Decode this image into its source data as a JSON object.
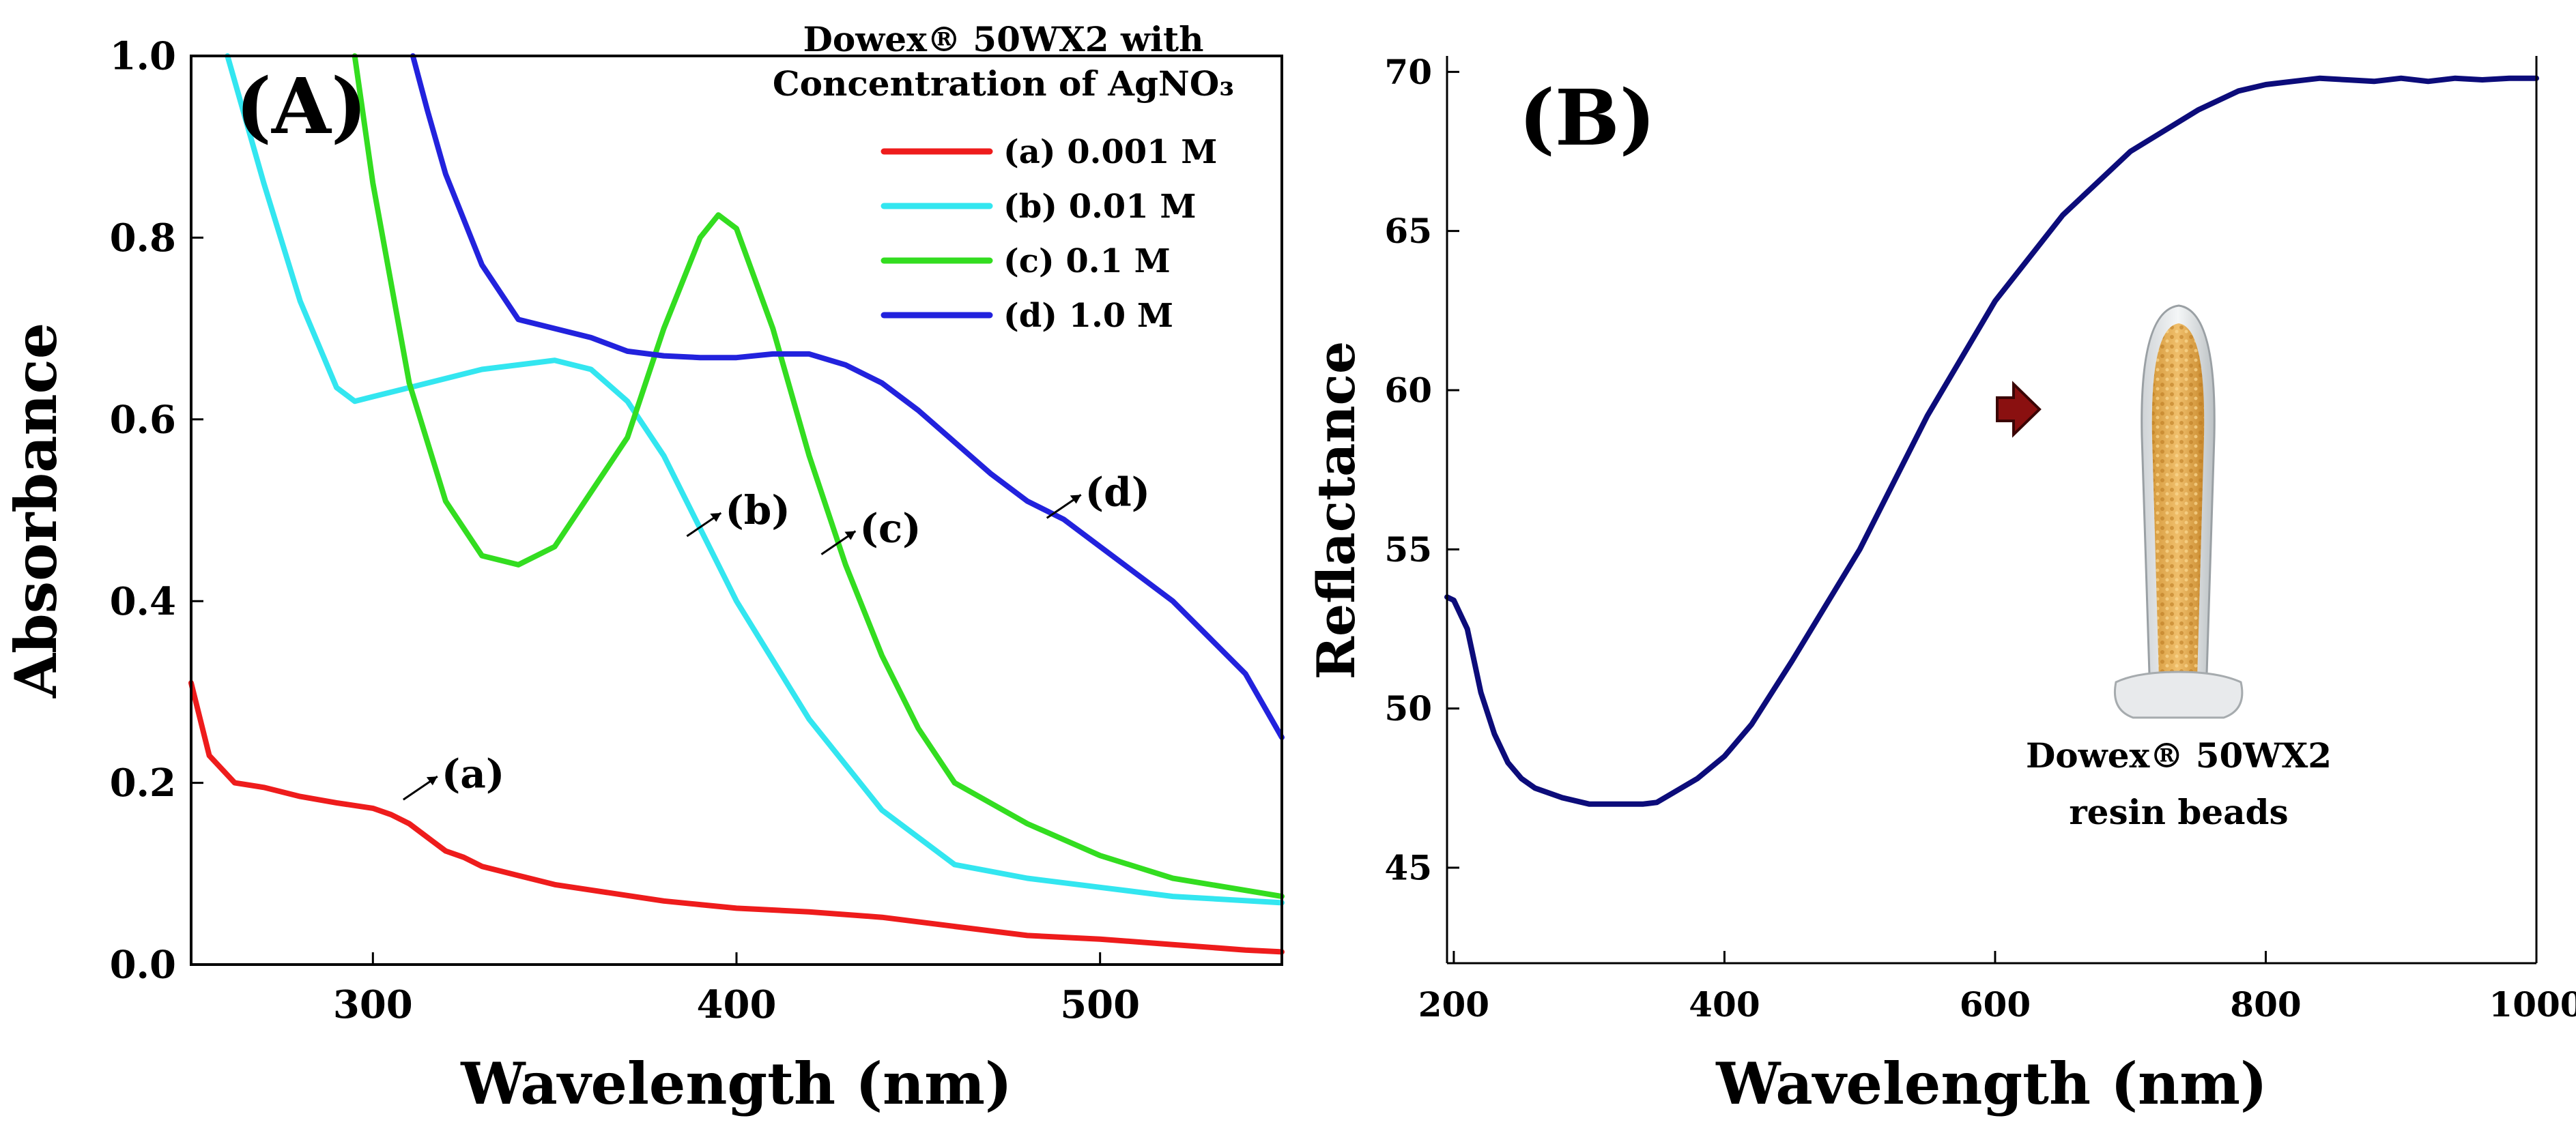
{
  "chart_data": [
    {
      "type": "line",
      "panel_label": "(A)",
      "xlabel": "Wavelength (nm)",
      "ylabel": "Absorbance",
      "xlim": [
        250,
        550
      ],
      "ylim": [
        0.0,
        1.0
      ],
      "x_ticks": [
        300,
        400,
        500
      ],
      "x_tick_labels": [
        "300",
        "400",
        "500"
      ],
      "y_ticks": [
        0.0,
        0.2,
        0.4,
        0.6,
        0.8,
        1.0
      ],
      "y_tick_labels": [
        "0.0",
        "0.2",
        "0.4",
        "0.6",
        "0.8",
        "1.0"
      ],
      "legend_title": [
        "Dowex® 50WX2 with",
        "Concentration of AgNO₃"
      ],
      "legend_position": "top-right",
      "series": [
        {
          "name": "(a) 0.001 M",
          "color": "#ee1c1c",
          "x": [
            250,
            255,
            262,
            270,
            280,
            290,
            300,
            305,
            310,
            315,
            320,
            325,
            330,
            340,
            350,
            360,
            370,
            380,
            390,
            400,
            420,
            440,
            460,
            480,
            500,
            520,
            540,
            550
          ],
          "y": [
            0.31,
            0.23,
            0.2,
            0.195,
            0.185,
            0.178,
            0.172,
            0.165,
            0.155,
            0.14,
            0.125,
            0.118,
            0.108,
            0.098,
            0.088,
            0.082,
            0.076,
            0.07,
            0.066,
            0.062,
            0.058,
            0.052,
            0.042,
            0.032,
            0.028,
            0.022,
            0.016,
            0.014
          ]
        },
        {
          "name": "(b) 0.01 M",
          "color": "#33e6f0",
          "x": [
            260,
            270,
            280,
            290,
            295,
            300,
            310,
            320,
            330,
            340,
            350,
            360,
            370,
            380,
            390,
            400,
            420,
            440,
            460,
            480,
            500,
            520,
            550
          ],
          "y": [
            1.0,
            0.86,
            0.73,
            0.635,
            0.62,
            0.625,
            0.635,
            0.645,
            0.655,
            0.66,
            0.665,
            0.655,
            0.62,
            0.56,
            0.48,
            0.4,
            0.27,
            0.17,
            0.11,
            0.095,
            0.085,
            0.075,
            0.068
          ]
        },
        {
          "name": "(c)  0.1 M",
          "color": "#33dd20",
          "x": [
            295,
            300,
            310,
            320,
            330,
            340,
            350,
            360,
            370,
            380,
            390,
            395,
            400,
            410,
            420,
            430,
            440,
            450,
            460,
            480,
            500,
            520,
            550
          ],
          "y": [
            1.0,
            0.86,
            0.64,
            0.51,
            0.45,
            0.44,
            0.46,
            0.52,
            0.58,
            0.7,
            0.8,
            0.825,
            0.81,
            0.7,
            0.56,
            0.44,
            0.34,
            0.26,
            0.2,
            0.155,
            0.12,
            0.095,
            0.075
          ]
        },
        {
          "name": "(d) 1.0 M",
          "color": "#2222dd",
          "x": [
            311,
            315,
            320,
            330,
            340,
            350,
            360,
            370,
            380,
            390,
            400,
            410,
            420,
            430,
            440,
            450,
            460,
            470,
            480,
            490,
            500,
            510,
            520,
            530,
            540,
            550
          ],
          "y": [
            1.0,
            0.94,
            0.87,
            0.77,
            0.71,
            0.7,
            0.69,
            0.675,
            0.67,
            0.668,
            0.668,
            0.672,
            0.672,
            0.66,
            0.64,
            0.61,
            0.575,
            0.54,
            0.51,
            0.49,
            0.46,
            0.43,
            0.4,
            0.36,
            0.32,
            0.25
          ]
        }
      ],
      "annotations": [
        {
          "text": "(a)",
          "x": 320,
          "y": 0.21
        },
        {
          "text": "(b)",
          "x": 398,
          "y": 0.5
        },
        {
          "text": "(c)",
          "x": 435,
          "y": 0.48
        },
        {
          "text": "(d)",
          "x": 497,
          "y": 0.52
        }
      ]
    },
    {
      "type": "line",
      "panel_label": "(B)",
      "xlabel": "Wavelength (nm)",
      "ylabel": "Reflactance",
      "xlim": [
        195,
        1000
      ],
      "ylim": [
        42,
        70.5
      ],
      "x_ticks": [
        200,
        400,
        600,
        800,
        1000
      ],
      "x_tick_labels": [
        "200",
        "400",
        "600",
        "800",
        "1000"
      ],
      "y_ticks": [
        45,
        50,
        55,
        60,
        65,
        70
      ],
      "y_tick_labels": [
        "45",
        "50",
        "55",
        "60",
        "65",
        "70"
      ],
      "series": [
        {
          "name": "Dowex 50WX2",
          "color": "#0c0c7a",
          "x": [
            195,
            200,
            210,
            220,
            230,
            240,
            250,
            260,
            280,
            300,
            320,
            340,
            350,
            360,
            380,
            400,
            420,
            450,
            500,
            550,
            600,
            650,
            700,
            750,
            780,
            800,
            820,
            840,
            860,
            880,
            900,
            920,
            940,
            960,
            980,
            1000
          ],
          "y": [
            53.5,
            53.4,
            52.5,
            50.5,
            49.2,
            48.3,
            47.8,
            47.5,
            47.2,
            47.0,
            47.0,
            47.0,
            47.05,
            47.3,
            47.8,
            48.5,
            49.5,
            51.5,
            55.0,
            59.2,
            62.8,
            65.5,
            67.5,
            68.8,
            69.4,
            69.6,
            69.7,
            69.8,
            69.75,
            69.7,
            69.8,
            69.7,
            69.8,
            69.75,
            69.8,
            69.8
          ]
        }
      ],
      "inset": {
        "caption": [
          "Dowex® 50WX2",
          "resin beads"
        ]
      }
    }
  ]
}
